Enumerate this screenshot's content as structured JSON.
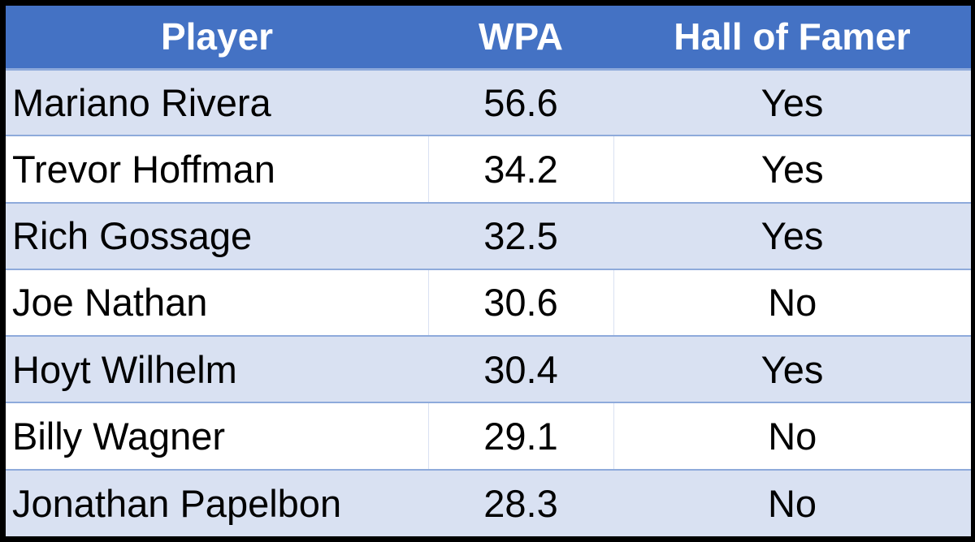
{
  "table": {
    "headers": [
      "Player",
      "WPA",
      "Hall of Famer"
    ],
    "rows": [
      [
        "Mariano Rivera",
        "56.6",
        "Yes"
      ],
      [
        "Trevor Hoffman",
        "34.2",
        "Yes"
      ],
      [
        "Rich Gossage",
        "32.5",
        "Yes"
      ],
      [
        "Joe Nathan",
        "30.6",
        "No"
      ],
      [
        "Hoyt Wilhelm",
        "30.4",
        "Yes"
      ],
      [
        "Billy Wagner",
        "29.1",
        "No"
      ],
      [
        "Jonathan Papelbon",
        "28.3",
        "No"
      ]
    ]
  },
  "colors": {
    "header_bg": "#4472c4",
    "header_text": "#ffffff",
    "band_row_bg": "#d9e1f2",
    "plain_row_bg": "#ffffff",
    "row_border": "#8eaadb",
    "frame": "#000000"
  }
}
